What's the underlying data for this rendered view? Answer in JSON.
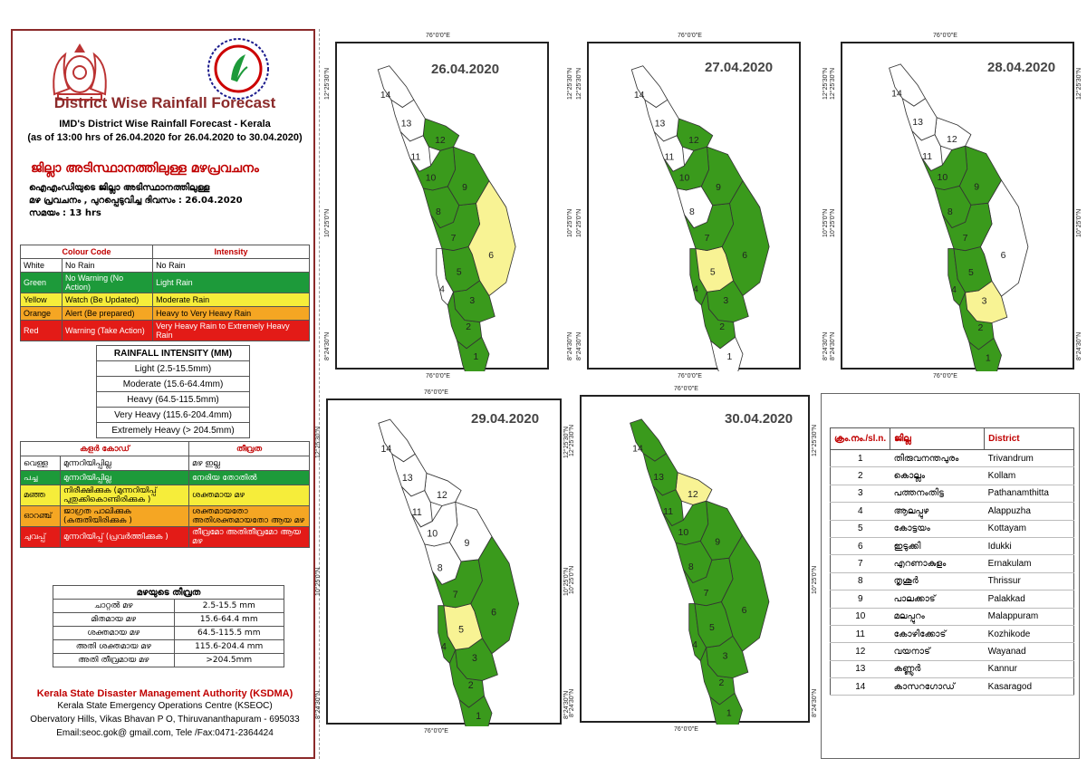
{
  "header": {
    "title": "District Wise Rainfall Forecast",
    "subtitle_line1": "IMD's District Wise Rainfall Forecast - Kerala",
    "subtitle_line2": "(as of 13:00 hrs of 26.04.2020  for 26.04.2020  to 30.04.2020)",
    "ml_title": "ജില്ലാ അടിസ്ഥാനത്തിലുള്ള മഴപ്രവചനം",
    "ml_line1": "ഐഎംഡിയുടെ ജില്ലാ   അടിസ്ഥാനത്തിലുള്ള",
    "ml_line2": "മഴ പ്രവചനം  , പുറപ്പെടുവിച്ച      ദിവസം : 26.04.2020",
    "ml_line3": "സമയം : 13  hrs"
  },
  "colour_code_table": {
    "col1": "Colour Code",
    "col2": "Intensity",
    "rows": [
      {
        "colour": "White",
        "code": "No Rain",
        "intensity": "No Rain"
      },
      {
        "colour": "Green",
        "code": "No Warning (No Action)",
        "intensity": "Light Rain"
      },
      {
        "colour": "Yellow",
        "code": "Watch (Be Updated)",
        "intensity": "Moderate Rain"
      },
      {
        "colour": "Orange",
        "code": "Alert (Be prepared)",
        "intensity": "Heavy to Very Heavy Rain"
      },
      {
        "colour": "Red",
        "code": "Warning (Take Action)",
        "intensity": "Very Heavy Rain to Extremely Heavy Rain"
      }
    ]
  },
  "rainfall_intensity": {
    "heading": "RAINFALL INTENSITY (MM)",
    "rows": [
      "Light (2.5-15.5mm)",
      "Moderate (15.6-64.4mm)",
      "Heavy (64.5-115.5mm)",
      "Very Heavy (115.6-204.4mm)",
      "Extremely Heavy (> 204.5mm)"
    ]
  },
  "ml_colour_table": {
    "col1": "കളർ കോഡ്",
    "col2": "തീവ്രത",
    "rows": [
      {
        "colour": "വെള്ള",
        "code": "മുന്നറിയിപ്പില്ല",
        "intensity": "മഴ ഇല്ല"
      },
      {
        "colour": "പച്ച",
        "code": "മുന്നറിയിപ്പില്ല",
        "intensity": "നേരിയ തോതിൽ"
      },
      {
        "colour": "മഞ്ഞ",
        "code": "നിരീക്ഷിക്കുക (മുന്നറിയിപ്പ് പുതുക്കികൊണ്ടിരിക്കുക )",
        "intensity": "ശക്തമായ മഴ"
      },
      {
        "colour": "ഓറഞ്ച്",
        "code": "ജാഗ്രത പാലിക്കുക (കരുതിയിരിക്കുക )",
        "intensity": "ശക്തമായതോ അതിശക്തമായതോ ആയ മഴ"
      },
      {
        "colour": "ചുവപ്പ്",
        "code": "മുന്നറിയിപ്പ് (പ്രവർത്തിക്കുക )",
        "intensity": "തീവ്രമോ അതിതീവ്രമോ ആയ മഴ"
      }
    ]
  },
  "ml_rain_table": {
    "heading": "മഴയുടെ തീവ്രത",
    "rows": [
      {
        "label": "ചാറ്റൽ മഴ",
        "range": "2.5-15.5 mm"
      },
      {
        "label": "മിതമായ മഴ",
        "range": "15.6-64.4 mm"
      },
      {
        "label": "ശക്തമായ മഴ",
        "range": "64.5-115.5 mm"
      },
      {
        "label": "അതി ശക്തമായ മഴ",
        "range": "115.6-204.4 mm"
      },
      {
        "label": "അതി തീവ്രമായ മഴ",
        "range": ">204.5mm"
      }
    ]
  },
  "footer": {
    "org": "Kerala State Disaster Management Authority (KSDMA)",
    "line1": "Kerala State Emergency Operations Centre (KSEOC)",
    "line2": "Obervatory Hills, Vikas Bhavan P O, Thiruvananthapuram - 695033",
    "line3": "Email:seoc.gok@ gmail.com, Tele /Fax:0471-2364424"
  },
  "coords": {
    "lon": "76°0'0\"E",
    "lat_n": "12°25'30\"N",
    "lat_mid": "10°25'0\"N",
    "lat_s": "8°24'30\"N"
  },
  "colors": {
    "white": "#ffffff",
    "green": "#3a9a1c",
    "yellow": "#f8f394",
    "outline": "#333333"
  },
  "maps": [
    {
      "date": "26.04.2020",
      "colors": {
        "1": "green",
        "2": "green",
        "3": "green",
        "4": "white",
        "5": "green",
        "6": "yellow",
        "7": "green",
        "8": "green",
        "9": "green",
        "10": "green",
        "11": "white",
        "12": "green",
        "13": "white",
        "14": "white"
      }
    },
    {
      "date": "27.04.2020",
      "colors": {
        "1": "white",
        "2": "green",
        "3": "green",
        "4": "green",
        "5": "yellow",
        "6": "green",
        "7": "green",
        "8": "white",
        "9": "green",
        "10": "green",
        "11": "white",
        "12": "green",
        "13": "white",
        "14": "white"
      }
    },
    {
      "date": "28.04.2020",
      "colors": {
        "1": "green",
        "2": "green",
        "3": "yellow",
        "4": "green",
        "5": "green",
        "6": "white",
        "7": "green",
        "8": "green",
        "9": "green",
        "10": "green",
        "11": "white",
        "12": "white",
        "13": "white",
        "14": "white"
      }
    },
    {
      "date": "29.04.2020",
      "colors": {
        "1": "green",
        "2": "green",
        "3": "green",
        "4": "green",
        "5": "yellow",
        "6": "green",
        "7": "green",
        "8": "white",
        "9": "white",
        "10": "white",
        "11": "white",
        "12": "white",
        "13": "white",
        "14": "white"
      }
    },
    {
      "date": "30.04.2020",
      "colors": {
        "1": "green",
        "2": "green",
        "3": "green",
        "4": "green",
        "5": "green",
        "6": "green",
        "7": "green",
        "8": "green",
        "9": "green",
        "10": "green",
        "11": "green",
        "12": "yellow",
        "13": "green",
        "14": "green"
      }
    }
  ],
  "district_table": {
    "col1": "ക്രം.നം./sl.n.",
    "col2": "ജില്ല",
    "col3": "District",
    "rows": [
      {
        "n": "1",
        "ml": "തിരുവനന്തപുരം",
        "en": "Trivandrum"
      },
      {
        "n": "2",
        "ml": "കൊല്ലം",
        "en": "Kollam"
      },
      {
        "n": "3",
        "ml": "പത്തനംതിട്ട",
        "en": "Pathanamthitta"
      },
      {
        "n": "4",
        "ml": "ആലപ്പുഴ",
        "en": "Alappuzha"
      },
      {
        "n": "5",
        "ml": "കോട്ടയം",
        "en": "Kottayam"
      },
      {
        "n": "6",
        "ml": "ഇടുക്കി",
        "en": "Idukki"
      },
      {
        "n": "7",
        "ml": "എറണാകുളം",
        "en": "Ernakulam"
      },
      {
        "n": "8",
        "ml": "തൃശൂർ",
        "en": "Thrissur"
      },
      {
        "n": "9",
        "ml": "പാലക്കാട്",
        "en": "Palakkad"
      },
      {
        "n": "10",
        "ml": "മലപ്പുറം",
        "en": "Malappuram"
      },
      {
        "n": "11",
        "ml": "കോഴിക്കോട്",
        "en": "Kozhikode"
      },
      {
        "n": "12",
        "ml": "വയനാട്",
        "en": "Wayanad"
      },
      {
        "n": "13",
        "ml": "കണ്ണൂർ",
        "en": "Kannur"
      },
      {
        "n": "14",
        "ml": "കാസറഗോഡ്",
        "en": "Kasaragod"
      }
    ]
  }
}
